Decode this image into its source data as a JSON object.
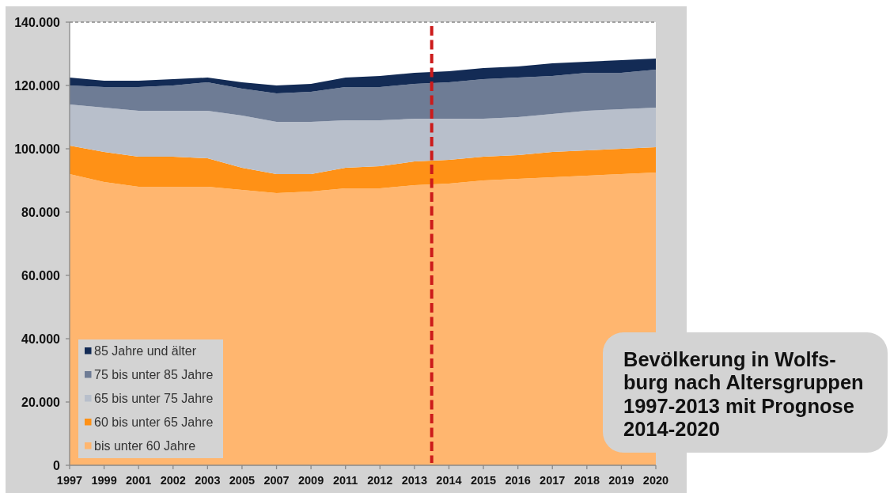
{
  "chart_data": {
    "type": "area",
    "title": "Bevölkerung in Wolfs-\nburg nach Altersgruppen\n1997-2013 mit Prognose\n2014-2020",
    "categories": [
      "1997",
      "1999",
      "2001",
      "2002",
      "2003",
      "2005",
      "2007",
      "2009",
      "2011",
      "2012",
      "2013",
      "2014",
      "2015",
      "2016",
      "2017",
      "2018",
      "2019",
      "2020"
    ],
    "stacked": true,
    "series": [
      {
        "name": "bis unter 60 Jahre",
        "color": "#ffb66f",
        "values": [
          92000,
          89500,
          88000,
          88000,
          88000,
          87000,
          86000,
          86500,
          87500,
          87500,
          88500,
          89000,
          90000,
          90500,
          91000,
          91500,
          92000,
          92500
        ]
      },
      {
        "name": "60 bis unter 65 Jahre",
        "color": "#ff9116",
        "values": [
          9000,
          9500,
          9500,
          9500,
          9000,
          7000,
          6000,
          5500,
          6500,
          7000,
          7500,
          7500,
          7500,
          7500,
          8000,
          8000,
          8000,
          8000
        ]
      },
      {
        "name": "65 bis unter 75 Jahre",
        "color": "#b8bfcb",
        "values": [
          13000,
          14000,
          14500,
          14500,
          15000,
          16500,
          16500,
          16500,
          15000,
          14500,
          13500,
          13000,
          12000,
          12000,
          12000,
          12500,
          12500,
          12500
        ]
      },
      {
        "name": "75 bis unter 85 Jahre",
        "color": "#6e7c95",
        "values": [
          6000,
          6500,
          7500,
          8000,
          9000,
          8500,
          9000,
          9500,
          10500,
          10500,
          11000,
          11500,
          12500,
          12500,
          12000,
          12000,
          11500,
          12000
        ]
      },
      {
        "name": "85 Jahre und älter",
        "color": "#132b55",
        "values": [
          2500,
          2000,
          2000,
          2000,
          1500,
          2000,
          2500,
          2500,
          3000,
          3500,
          3500,
          3500,
          3500,
          3500,
          4000,
          3500,
          4000,
          3500
        ]
      }
    ],
    "ylim": [
      0,
      140000
    ],
    "yticks": [
      0,
      {
        "value": 20000,
        "label": "20.000"
      },
      {
        "value": 40000,
        "label": "40.000"
      },
      {
        "value": 60000,
        "label": "60.000"
      },
      {
        "value": 80000,
        "label": "80.000"
      },
      {
        "value": 100000,
        "label": "100.000"
      },
      {
        "value": 120000,
        "label": "120.000"
      },
      {
        "value": 140000,
        "label": "140.000"
      }
    ],
    "legend": "bottom left"
  }
}
